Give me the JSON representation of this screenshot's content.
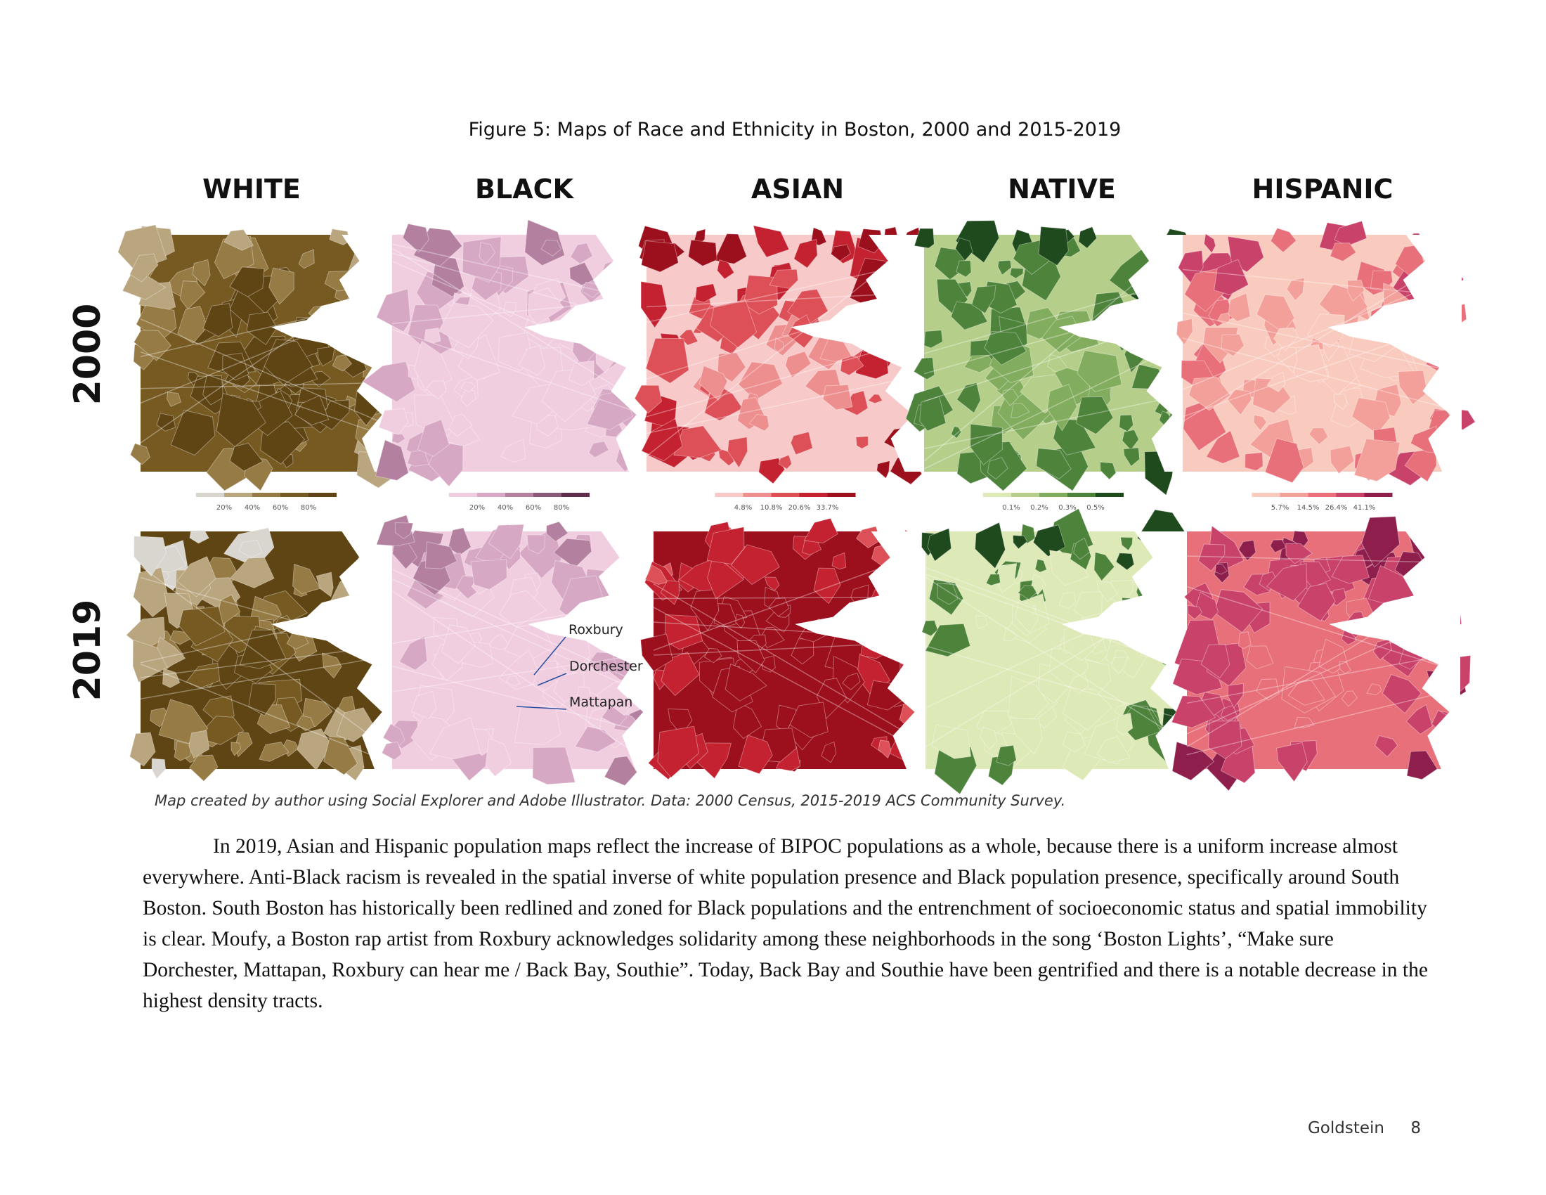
{
  "figure": {
    "title": "Figure 5: Maps of Race and Ethnicity in Boston, 2000 and 2015-2019",
    "columns": [
      "WHITE",
      "BLACK",
      "ASIAN",
      "NATIVE",
      "HISPANIC"
    ],
    "rows": [
      "2000",
      "2019"
    ],
    "legends": [
      [
        "20%",
        "40%",
        "60%",
        "80%"
      ],
      [
        "20%",
        "40%",
        "60%",
        "80%"
      ],
      [
        "4.8%",
        "10.8%",
        "20.6%",
        "33.7%"
      ],
      [
        "0.1%",
        "0.2%",
        "0.3%",
        "0.5%"
      ],
      [
        "5.7%",
        "14.5%",
        "26.4%",
        "41.1%"
      ]
    ],
    "annotations": [
      "Roxbury",
      "Dorchester",
      "Mattapan"
    ],
    "caption": "Map created by author using Social Explorer and Adobe Illustrator. Data: 2000 Census, 2015-2019 ACS Community Survey."
  },
  "body": {
    "paragraph": "In 2019, Asian and Hispanic population maps reflect the increase of BIPOC populations as a whole, because there is a uniform increase almost everywhere. Anti-Black racism is revealed in the spatial inverse of white population presence and Black population presence, specifically around South Boston. South Boston has historically been redlined and zoned for Black populations and the entrenchment of socioeconomic status and spatial immobility is clear. Moufy, a Boston rap artist from Roxbury acknowledges solidarity among these neighborhoods in the song ‘Boston Lights’, “Make sure Dorchester, Mattapan, Roxbury can hear me / Back Bay, Southie”. Today, Back Bay and Southie have been gentrified and there is a notable decrease in the highest density tracts."
  },
  "footer": {
    "author": "Goldstein",
    "page": 8
  }
}
